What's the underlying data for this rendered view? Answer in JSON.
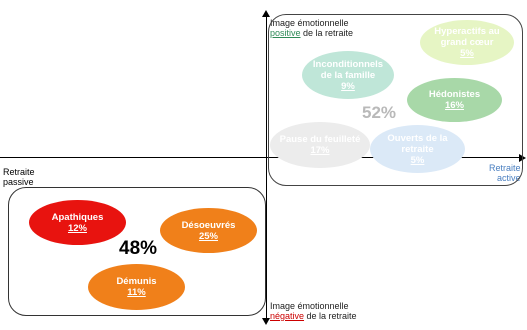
{
  "axes": {
    "top": {
      "line1": "Image émotionnelle",
      "accent": "positive",
      "rest": " de la retraite"
    },
    "bottom": {
      "line1": "Image émotionnelle",
      "accent": "négative",
      "rest": " de la retraite"
    },
    "left": {
      "line1": "Retraite",
      "line2": "passive"
    },
    "right": {
      "line1": "Retraite",
      "line2": "active"
    }
  },
  "regions": {
    "top": {
      "total": "52%"
    },
    "bottom": {
      "total": "48%"
    }
  },
  "segments": {
    "hyperactifs": {
      "name_line1": "Hyperactifs au",
      "name_line2": "grand cœur",
      "pct": "5%",
      "color": "#e6f5c4"
    },
    "inconditionnels": {
      "name_line1": "Inconditionnels",
      "name_line2": "de la famille",
      "pct": "9%",
      "color": "#bfe6d8"
    },
    "hedonistes": {
      "name_line1": "Hédonistes",
      "pct": "16%",
      "color": "#a8d8a8"
    },
    "pause": {
      "name_line1": "Pause du feuilleté",
      "pct": "17%",
      "color": "#ececec"
    },
    "ouverts": {
      "name_line1": "Ouverts de la",
      "name_line2": "retraite",
      "pct": "5%",
      "color": "#dbe9f7"
    },
    "apathiques": {
      "name_line1": "Apathiques",
      "pct": "12%",
      "color": "#e8130f"
    },
    "desoeuvres": {
      "name_line1": "Désoeuvrés",
      "pct": "25%",
      "color": "#f0801a"
    },
    "demunis": {
      "name_line1": "Démunis",
      "pct": "11%",
      "color": "#f0801a"
    }
  }
}
